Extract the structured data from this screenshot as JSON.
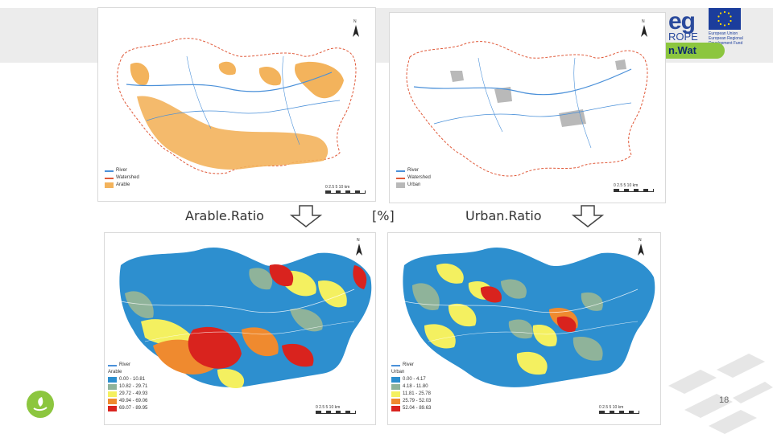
{
  "header": {
    "program_logo": {
      "line1": "eg",
      "line2": "ROPE"
    },
    "eu_emblem_text": "European Union European Regional Development Fund",
    "project_logo": "n.Wat"
  },
  "maps": {
    "arable_map": {
      "north_label": "N",
      "legend": [
        "River",
        "Watershed",
        "Arable"
      ],
      "scale": "0  2.5  5       10 km"
    },
    "urban_map": {
      "north_label": "N",
      "legend": [
        "River",
        "Watershed",
        "Urban"
      ],
      "scale": "0  2.5  5       10 km"
    },
    "arable_ratio_map": {
      "north_label": "N",
      "legend_title_river": "River",
      "legend_title": "Arable",
      "classes": [
        {
          "label": "0.00 - 10.81",
          "color": "#2d8fcf"
        },
        {
          "label": "10.82 - 29.71",
          "color": "#8fb39a"
        },
        {
          "label": "29.72 - 49.93",
          "color": "#f4f060"
        },
        {
          "label": "49.94 - 69.06",
          "color": "#ef8a2f"
        },
        {
          "label": "69.07 - 89.95",
          "color": "#d9231e"
        }
      ],
      "scale": "0  2.5  5       10 km"
    },
    "urban_ratio_map": {
      "north_label": "N",
      "legend_title_river": "River",
      "legend_title": "Urban",
      "classes": [
        {
          "label": "0.00 - 4.17",
          "color": "#2d8fcf"
        },
        {
          "label": "4.18 - 11.80",
          "color": "#8fb39a"
        },
        {
          "label": "11.81 - 25.78",
          "color": "#f4f060"
        },
        {
          "label": "25.79 - 52.03",
          "color": "#ef8a2f"
        },
        {
          "label": "52.04 - 89.63",
          "color": "#d9231e"
        }
      ],
      "scale": "0  2.5  5       10 km"
    }
  },
  "captions": {
    "arable_ratio": "Arable.Ratio",
    "unit": "[%]",
    "urban_ratio": "Urban.Ratio"
  },
  "footer": {
    "page_number": "18"
  },
  "colors": {
    "arable_fill": "#f3b35c",
    "urban_fill": "#b9b9b9",
    "river": "#4a90d9",
    "watershed": "#e05a3a",
    "accent_green": "#8cc63f"
  }
}
